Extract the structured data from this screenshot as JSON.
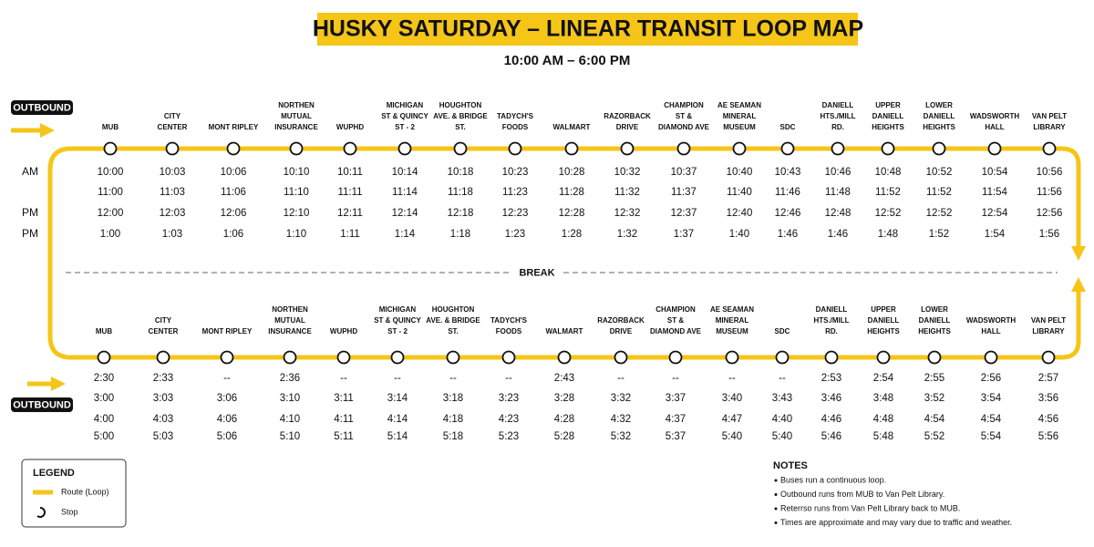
{
  "title": "HUSKY SATURDAY – LINEAR TRANSIT LOOP MAP",
  "subtitle": "10:00 AM – 6:00 PM",
  "break_label": "BREAK",
  "top": {
    "direction": "OUTBOUND",
    "stops": [
      [
        "MUB"
      ],
      [
        "CITY",
        "CENTER"
      ],
      [
        "MONT RIPLEY"
      ],
      [
        "NORTHEN",
        "MUTUAL",
        "INSURANCE"
      ],
      [
        "WUPHD"
      ],
      [
        "MICHIGAN",
        "ST & QUINCY",
        "ST - 2"
      ],
      [
        "HOUGHTON",
        "AVE. & BRIDGE",
        "ST."
      ],
      [
        "TADYCH'S",
        "FOODS"
      ],
      [
        "WALMART"
      ],
      [
        "RAZORBACK",
        "DRIVE"
      ],
      [
        "CHAMPION",
        "ST &",
        "DIAMOND AVE"
      ],
      [
        "AE SEAMAN",
        "MINERAL",
        "MUSEUM"
      ],
      [
        "SDC"
      ],
      [
        "DANIELL",
        "HTS./MILL",
        "RD."
      ],
      [
        "UPPER",
        "DANIELL",
        "HEIGHTS"
      ],
      [
        "LOWER",
        "DANIELL",
        "HEIGHTS"
      ],
      [
        "WADSWORTH",
        "HALL"
      ],
      [
        "VAN PELT",
        "LIBRARY"
      ]
    ],
    "rows": [
      {
        "label": "AM",
        "times": [
          "10:00",
          "10:03",
          "10:06",
          "10:10",
          "10:11",
          "10:14",
          "10:18",
          "10:23",
          "10:28",
          "10:32",
          "10:37",
          "10:40",
          "10:43",
          "10:46",
          "10:48",
          "10:52",
          "10:54",
          "10:56"
        ]
      },
      {
        "times": [
          "11:00",
          "11:03",
          "11:06",
          "11:10",
          "11:11",
          "11:14",
          "11:18",
          "11:23",
          "11:28",
          "11:32",
          "11:37",
          "11:40",
          "11:46",
          "11:48",
          "11:52",
          "11:52",
          "11:54",
          "11:56"
        ]
      },
      {
        "label": "PM",
        "times": [
          "12:00",
          "12:03",
          "12:06",
          "12:10",
          "12:11",
          "12:14",
          "12:18",
          "12:23",
          "12:28",
          "12:32",
          "12:37",
          "12:40",
          "12:46",
          "12:48",
          "12:52",
          "12:52",
          "12:54",
          "12:56"
        ]
      },
      {
        "label": "PM",
        "times": [
          "1:00",
          "1:03",
          "1:06",
          "1:10",
          "1:11",
          "1:14",
          "1:18",
          "1:23",
          "1:28",
          "1:32",
          "1:37",
          "1:40",
          "1:46",
          "1:46",
          "1:48",
          "1:52",
          "1:54",
          "1:56"
        ]
      }
    ]
  },
  "bottom": {
    "direction": "OUTBOUND",
    "stops": [
      [
        "MUB"
      ],
      [
        "CITY",
        "CENTER"
      ],
      [
        "MONT RIPLEY"
      ],
      [
        "NORTHEN",
        "MUTUAL",
        "INSURANCE"
      ],
      [
        "WUPHD"
      ],
      [
        "MICHIGAN",
        "ST & QUINCY",
        "ST - 2"
      ],
      [
        "HOUGHTON",
        "AVE. & BRIDGE",
        "ST."
      ],
      [
        "TADYCH'S",
        "FOODS"
      ],
      [
        "WALMART"
      ],
      [
        "RAZORBACK",
        "DRIVE"
      ],
      [
        "CHAMPION",
        "ST &",
        "DIAMOND AVE"
      ],
      [
        "AE SEAMAN",
        "MINERAL",
        "MUSEUM"
      ],
      [
        "SDC"
      ],
      [
        "DANIELL",
        "HTS./MILL",
        "RD."
      ],
      [
        "UPPER",
        "DANIELL",
        "HEIGHTS"
      ],
      [
        "LOWER",
        "DANIELL",
        "HEIGHTS"
      ],
      [
        "WADSWORTH",
        "HALL"
      ],
      [
        "VAN PELT",
        "LIBRARY"
      ]
    ],
    "rows": [
      {
        "times": [
          "2:30",
          "2:33",
          "--",
          "2:36",
          "--",
          "--",
          "--",
          "--",
          "2:43",
          "--",
          "--",
          "--",
          "--",
          "2:53",
          "2:54",
          "2:55",
          "2:56",
          "2:57"
        ]
      },
      {
        "times": [
          "3:00",
          "3:03",
          "3:06",
          "3:10",
          "3:11",
          "3:14",
          "3:18",
          "3:23",
          "3:28",
          "3:32",
          "3:37",
          "3:40",
          "3:43",
          "3:46",
          "3:48",
          "3:52",
          "3:54",
          "3:56"
        ]
      },
      {
        "times": [
          "4:00",
          "4:03",
          "4:06",
          "4:10",
          "4:11",
          "4:14",
          "4:18",
          "4:23",
          "4:28",
          "4:32",
          "4:37",
          "4:47",
          "4:40",
          "4:46",
          "4:48",
          "4:54",
          "4:54",
          "4:56"
        ]
      },
      {
        "times": [
          "5:00",
          "5:03",
          "5:06",
          "5:10",
          "5:11",
          "5:14",
          "5:18",
          "5:23",
          "5:28",
          "5:32",
          "5:37",
          "5:40",
          "5:40",
          "5:46",
          "5:48",
          "5:52",
          "5:54",
          "5:56"
        ]
      }
    ]
  },
  "legend": {
    "title": "LEGEND",
    "items": [
      "Route (Loop)",
      "Stop"
    ]
  },
  "notes": {
    "title": "NOTES",
    "items": [
      "Buses run a continuous loop.",
      "Outbound runs from MUB to Van Pelt Library.",
      "Reterrso runs from Van Pelt Library back to MUB.",
      "Times are approximate and may vary due to traffic and weather."
    ]
  }
}
